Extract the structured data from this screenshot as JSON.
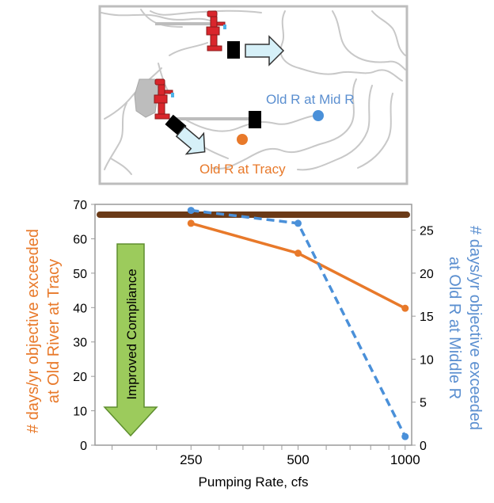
{
  "colors": {
    "left_axis_label": "#E8792A",
    "right_axis_label": "#5B8FD0",
    "tracy_series": "#E8792A",
    "midr_series": "#4A90D9",
    "threshold_line": "#6B3A17",
    "arrow_fill": "#9CCB5C",
    "arrow_stroke": "#5E8E2E",
    "map_border": "#BDBDBD",
    "river": "#C8C8C8",
    "pump": "#D9262C"
  },
  "map": {
    "label_midr": "Old R at Mid R",
    "label_tracy": "Old R at Tracy"
  },
  "annotation": {
    "arrow_text": "Improved Compliance"
  },
  "chart_data": {
    "type": "line",
    "xlabel": "Pumping Rate, cfs",
    "x_scale": "log",
    "x_tick_labels": [
      "250",
      "500",
      "1000"
    ],
    "ylabel_left": "# days/yr objective exceeded at Old River at Tracy",
    "ylabel_left_lines": [
      "# days/yr objective exceeded",
      "at Old River at Tracy"
    ],
    "ylabel_right": "# days/yr objective exceeded at Old R at Middle R",
    "ylabel_right_lines": [
      "# days/yr objective exceeded",
      "at Old R at Middle R"
    ],
    "ylim_left": [
      0,
      70
    ],
    "ylim_right": [
      0,
      28
    ],
    "yticks_left": [
      0,
      10,
      20,
      30,
      40,
      50,
      60,
      70
    ],
    "yticks_right": [
      0,
      5,
      10,
      15,
      20,
      25
    ],
    "threshold": {
      "y_left": 67
    },
    "series": [
      {
        "axis": "left",
        "style": "solid",
        "points": [
          {
            "x": 250,
            "y": 64.5
          },
          {
            "x": 500,
            "y": 55.8
          },
          {
            "x": 1000,
            "y": 39.8
          }
        ]
      },
      {
        "axis": "right",
        "style": "dashed",
        "points": [
          {
            "x": 250,
            "y": 27.3
          },
          {
            "x": 500,
            "y": 25.8
          },
          {
            "x": 1000,
            "y": 1.0
          }
        ]
      }
    ]
  }
}
